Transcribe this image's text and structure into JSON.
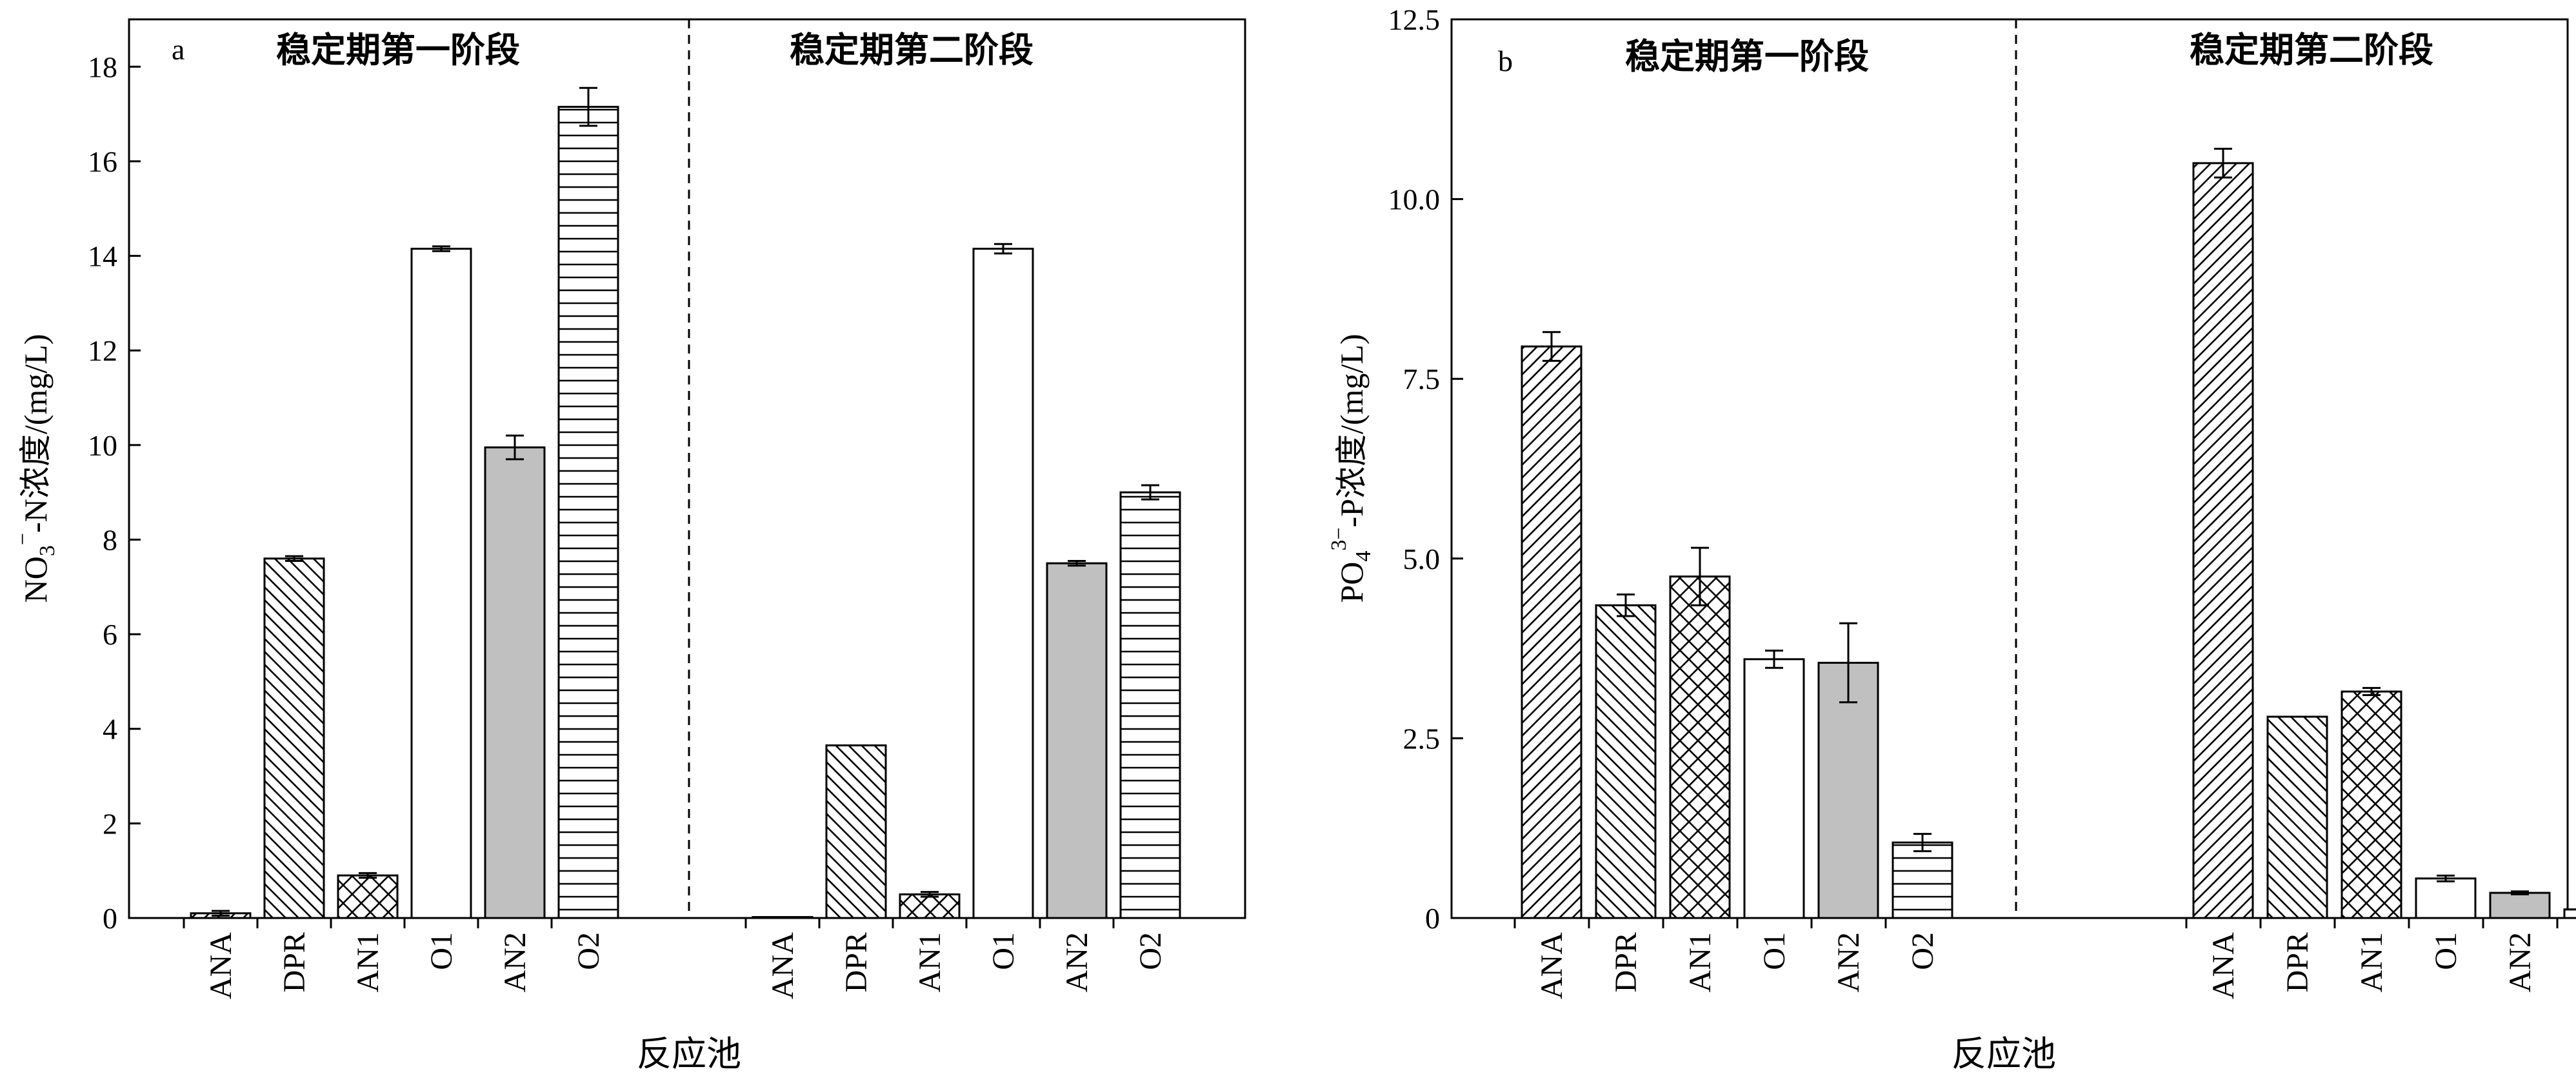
{
  "chart_data": [
    {
      "type": "bar",
      "panel_label": "a",
      "ylabel": "NO3−-N浓度/(mg/L)",
      "ylabel_parts": {
        "pre": "NO",
        "sub": "3",
        "sup": "−",
        "post": "-N浓度/(mg/L)"
      },
      "xlabel": "反应池",
      "ylim": [
        0,
        19
      ],
      "yticks": [
        0,
        2,
        4,
        6,
        8,
        10,
        12,
        14,
        16,
        18
      ],
      "ytick_labels": [
        "0",
        "2",
        "4",
        "6",
        "8",
        "10",
        "12",
        "14",
        "16",
        "18"
      ],
      "categories": [
        "ANA",
        "DPR",
        "AN1",
        "O1",
        "AN2",
        "O2"
      ],
      "groups": [
        {
          "name": "稳定期第一阶段",
          "values": [
            0.1,
            7.6,
            0.9,
            14.15,
            9.95,
            17.15
          ],
          "errors": [
            0.05,
            0.05,
            0.05,
            0.05,
            0.25,
            0.4
          ]
        },
        {
          "name": "稳定期第二阶段",
          "values": [
            0.02,
            3.65,
            0.5,
            14.15,
            7.5,
            9.0
          ],
          "errors": [
            0.0,
            0.0,
            0.05,
            0.1,
            0.05,
            0.15
          ]
        }
      ]
    },
    {
      "type": "bar",
      "panel_label": "b",
      "ylabel": "PO43−-P浓度/(mg/L)",
      "ylabel_parts": {
        "pre": "PO",
        "sub": "4",
        "sup": "3−",
        "post": "-P浓度/(mg/L)"
      },
      "xlabel": "反应池",
      "ylim": [
        0,
        12.5
      ],
      "yticks": [
        0,
        2.5,
        5.0,
        7.5,
        10.0,
        12.5
      ],
      "ytick_labels": [
        "0",
        "2.5",
        "5.0",
        "7.5",
        "10.0",
        "12.5"
      ],
      "categories": [
        "ANA",
        "DPR",
        "AN1",
        "O1",
        "AN2",
        "O2"
      ],
      "groups": [
        {
          "name": "稳定期第一阶段",
          "values": [
            7.95,
            4.35,
            4.75,
            3.6,
            3.55,
            1.05
          ],
          "errors": [
            0.2,
            0.15,
            0.4,
            0.12,
            0.55,
            0.12
          ]
        },
        {
          "name": "稳定期第二阶段",
          "values": [
            10.5,
            2.8,
            3.15,
            0.55,
            0.35,
            0.12
          ],
          "errors": [
            0.2,
            0.0,
            0.05,
            0.04,
            0.02,
            0.0
          ]
        }
      ]
    }
  ],
  "fills": [
    "diag-up",
    "diag-down",
    "crosshatch",
    "white",
    "gray",
    "horizontal"
  ],
  "colors": {
    "gray_fill": "#c0c0c0",
    "line": "#000000",
    "background": "#ffffff"
  }
}
